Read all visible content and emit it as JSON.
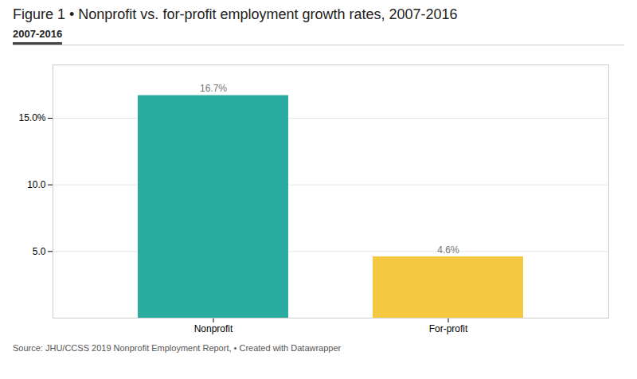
{
  "chart_data": {
    "type": "bar",
    "title": "Figure 1 • Nonprofit vs. for-profit employment growth rates, 2007-2016",
    "subtitle": "2007-2016",
    "categories": [
      "Nonprofit",
      "For-profit"
    ],
    "values": [
      16.7,
      4.6
    ],
    "value_labels": [
      "16.7%",
      "4.6%"
    ],
    "colors": [
      "#2AACA0",
      "#F5C842"
    ],
    "ylim": [
      0,
      19
    ],
    "yticks": [
      {
        "value": 5.0,
        "label": "5.0"
      },
      {
        "value": 10.0,
        "label": "10.0"
      },
      {
        "value": 15.0,
        "label": "15.0%"
      }
    ],
    "grid": true,
    "data_labels": true,
    "source": "Source: JHU/CCSS 2019 Nonprofit Employment Report, • Created with Datawrapper"
  }
}
